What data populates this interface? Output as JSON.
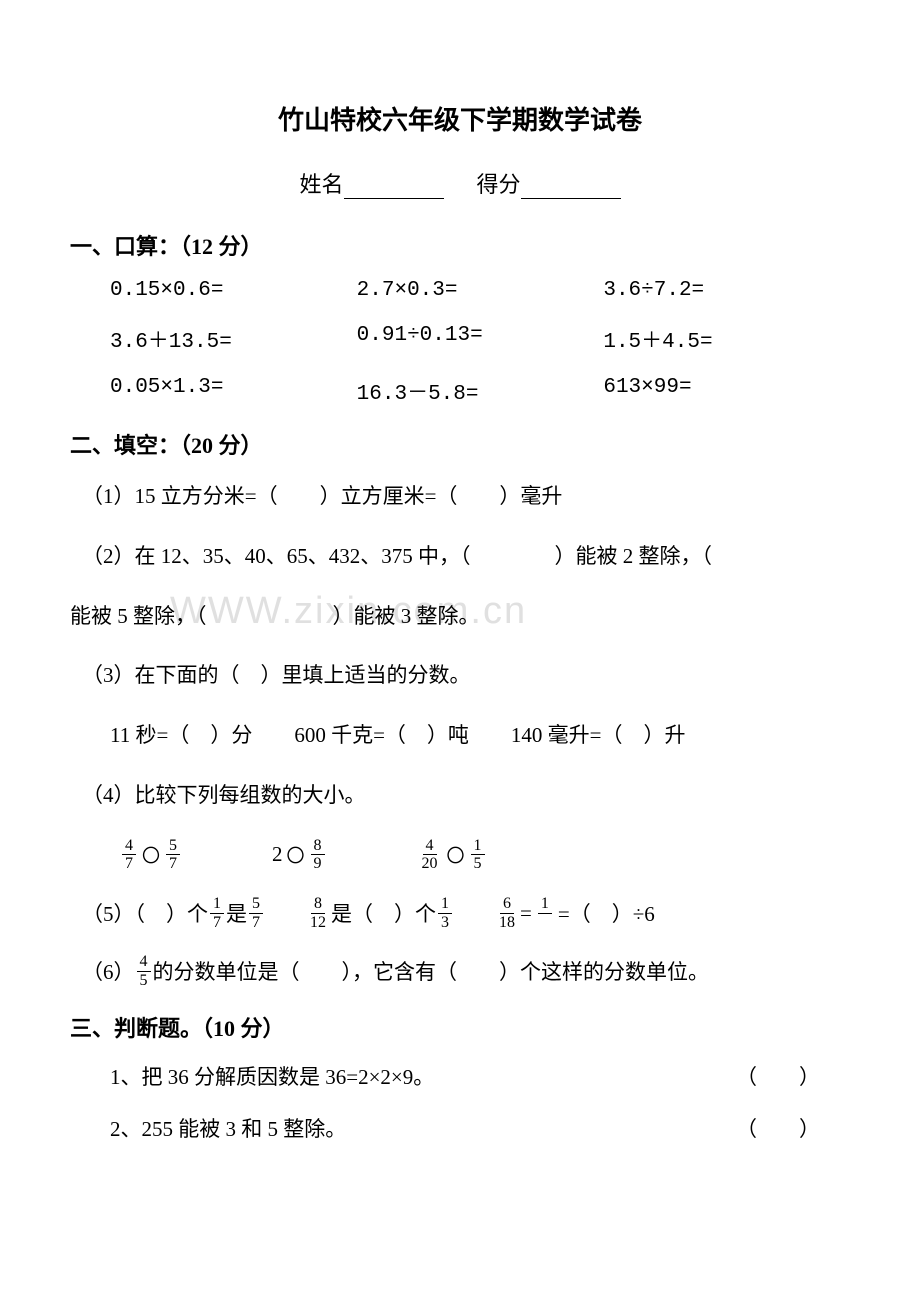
{
  "title": "竹山特校六年级下学期数学试卷",
  "name_label": "姓名",
  "score_label": "得分",
  "section1": {
    "header": "一、口算：（12 分）",
    "rows": [
      [
        "0.15×0.6=",
        "2.7×0.3=",
        "3.6÷7.2="
      ],
      [
        "3.6＋13.5=",
        "0.91÷0.13=",
        "1.5＋4.5="
      ],
      [
        "0.05×1.3=",
        "16.3－5.8=",
        "613×99="
      ]
    ]
  },
  "section2": {
    "header": "二、填空：（20 分）",
    "q1": "（1）15 立方分米=（　　）立方厘米=（　　）毫升",
    "q2a": "（2）在 12、35、40、65、432、375 中，（　　　　）能被 2 整除，（",
    "q2b": "能被 5 整除，（　　　　　　）能被 3 整除。",
    "q3": "（3）在下面的（　）里填上适当的分数。",
    "q3_sub": "11 秒=（　）分　　600 千克=（　）吨　　140 毫升=（　）升",
    "q4": "（4）比较下列每组数的大小。",
    "q5_open": "（5）（　）个",
    "q5_is": "是",
    "q5_mid": "是（　）个",
    "q5_eq": "=",
    "q5_end": "=（　）÷6",
    "q6_open": "（6）",
    "q6_rest": "的分数单位是（　　），它含有（　　）个这样的分数单位。"
  },
  "section3": {
    "header": "三、判断题。（10 分）",
    "j1": "1、把 36 分解质因数是 36=2×2×9。",
    "j2": "2、255 能被 3 和 5 整除。",
    "paren": "（　　）"
  },
  "watermark": "WWW.zixin.com.cn",
  "fractions": {
    "f4_7": {
      "n": "4",
      "d": "7"
    },
    "f5_7": {
      "n": "5",
      "d": "7"
    },
    "f8_9": {
      "n": "8",
      "d": "9"
    },
    "f4_20": {
      "n": "4",
      "d": "20"
    },
    "f1_5": {
      "n": "1",
      "d": "5"
    },
    "f1_7": {
      "n": "1",
      "d": "7"
    },
    "f8_12": {
      "n": "8",
      "d": "12"
    },
    "f1_3": {
      "n": "1",
      "d": "3"
    },
    "f6_18": {
      "n": "6",
      "d": "18"
    },
    "f1_b": {
      "n": "1",
      "d": "　"
    },
    "f4_5": {
      "n": "4",
      "d": "5"
    }
  },
  "two": "2",
  "circle": "〇"
}
